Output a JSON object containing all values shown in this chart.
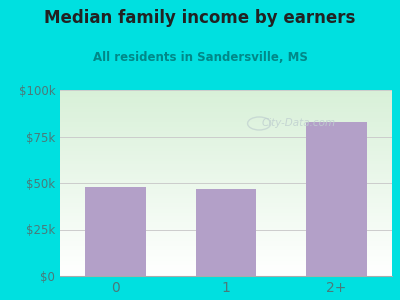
{
  "title": "Median family income by earners",
  "subtitle": "All residents in Sandersville, MS",
  "categories": [
    "0",
    "1",
    "2+"
  ],
  "values": [
    48000,
    47000,
    83000
  ],
  "bar_color": "#b3a0c8",
  "ylim": [
    0,
    100000
  ],
  "yticks": [
    0,
    25000,
    50000,
    75000,
    100000
  ],
  "ytick_labels": [
    "$0",
    "$25k",
    "$50k",
    "$75k",
    "$100k"
  ],
  "outer_bg": "#00e0e0",
  "plot_bg_top": "#d8f0d8",
  "plot_bg_bottom": "#ffffff",
  "title_color": "#222222",
  "subtitle_color": "#008888",
  "axis_label_color": "#4a7a7a",
  "watermark_text": "City-Data.com",
  "watermark_color": "#c0d0d0",
  "grid_color": "#cccccc",
  "bar_width": 0.55
}
